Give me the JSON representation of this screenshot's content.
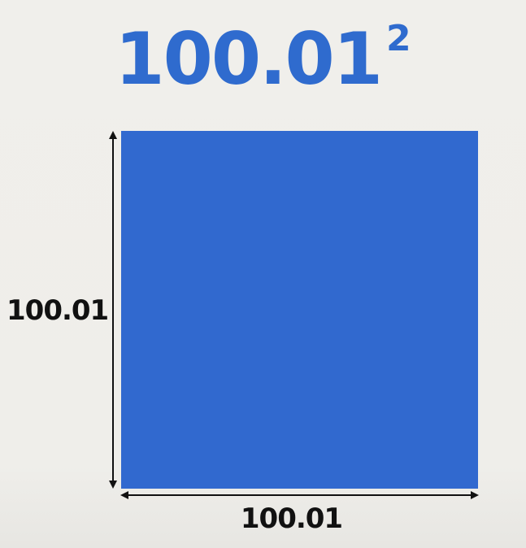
{
  "title": {
    "base": "100.01",
    "exponent": "2"
  },
  "square": {
    "color": "#3169cf",
    "height_label": "100.01",
    "width_label": "100.01"
  },
  "colors": {
    "title": "#2f6bce",
    "background": "#efeeea",
    "arrows": "#111111"
  }
}
